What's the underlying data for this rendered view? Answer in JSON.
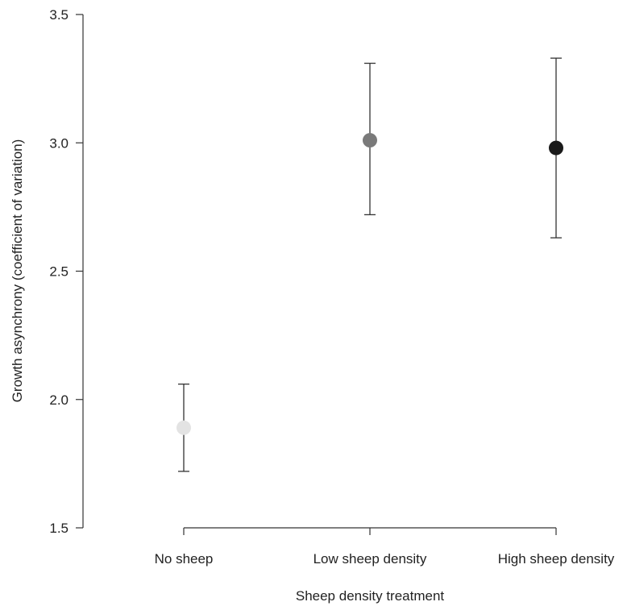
{
  "chart_data": {
    "type": "scatter",
    "title": "",
    "xlabel": "Sheep density treatment",
    "ylabel": "Growth asynchrony (coefficient of variation)",
    "categories": [
      "No sheep",
      "Low sheep density",
      "High sheep density"
    ],
    "points": [
      {
        "category": "No sheep",
        "value": 1.89,
        "ci_low": 1.72,
        "ci_high": 2.06,
        "color": "#e3e3e3"
      },
      {
        "category": "Low sheep density",
        "value": 3.01,
        "ci_low": 2.72,
        "ci_high": 3.31,
        "color": "#7a7a7a"
      },
      {
        "category": "High sheep density",
        "value": 2.98,
        "ci_low": 2.63,
        "ci_high": 3.33,
        "color": "#1a1a1a"
      }
    ],
    "ylim": [
      1.5,
      3.5
    ],
    "yticks": [
      "1.5",
      "2.0",
      "2.5",
      "3.0",
      "3.5"
    ],
    "grid": false,
    "legend": "none"
  }
}
